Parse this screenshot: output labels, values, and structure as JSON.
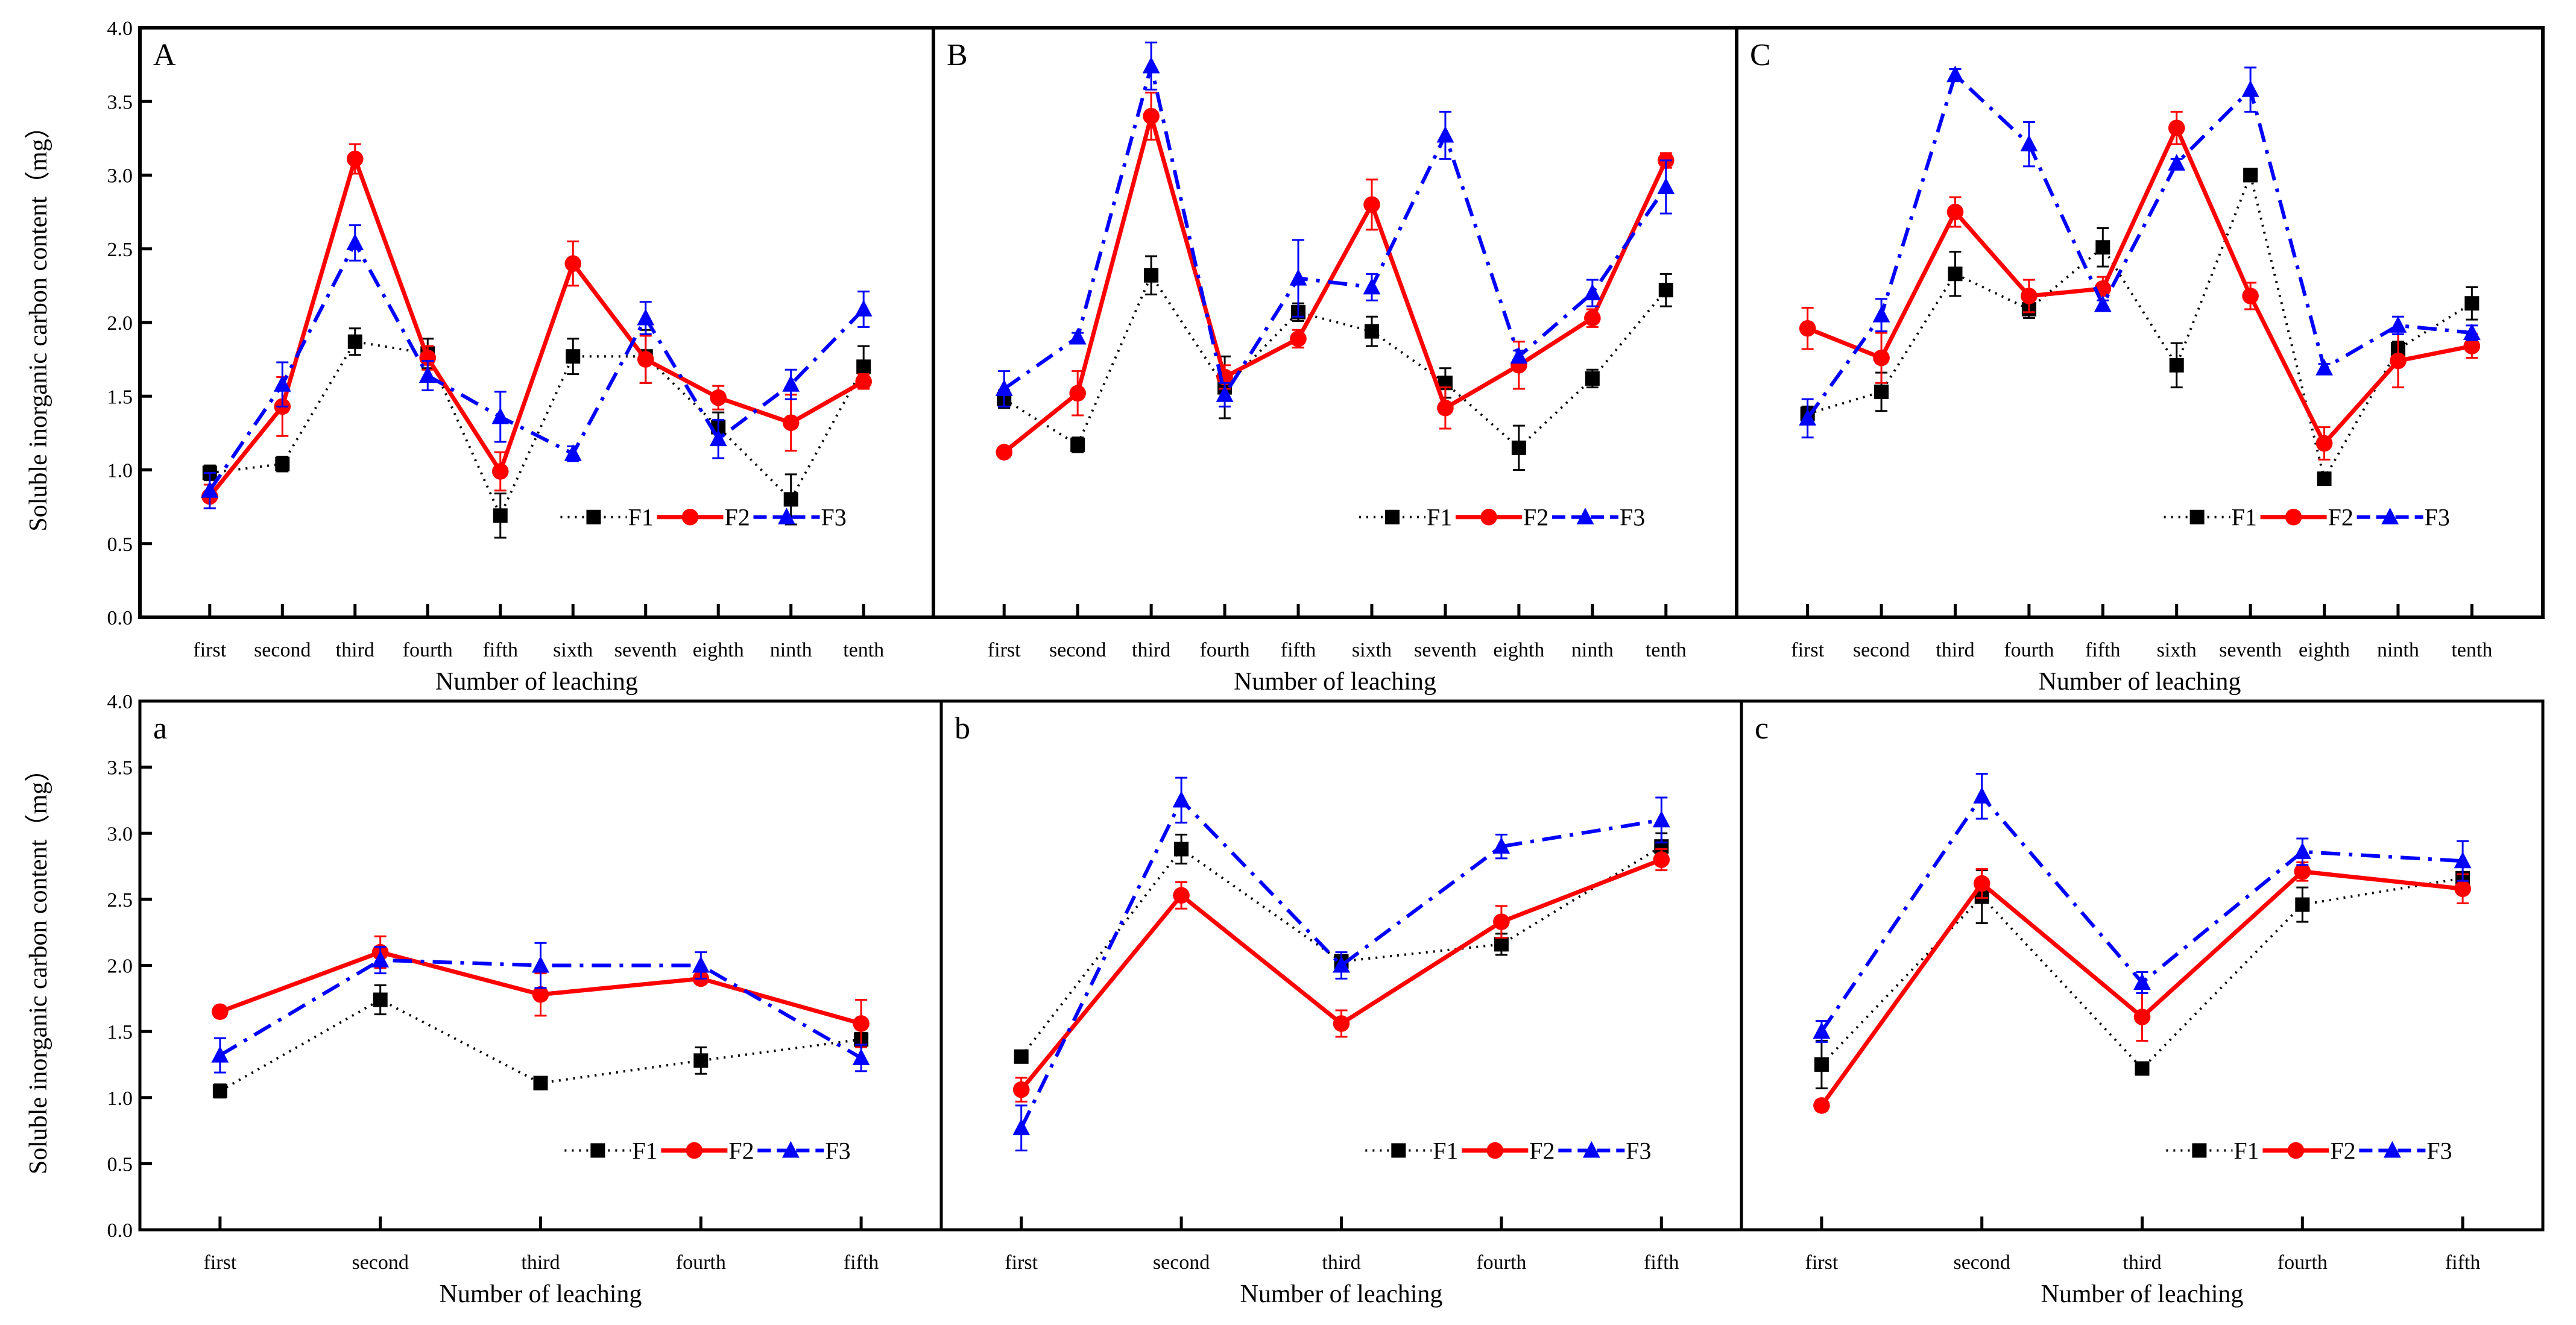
{
  "colors": {
    "F1": "#000000",
    "F2": "#ff0000",
    "F3": "#0000ff"
  },
  "ylabel": "Soluble inorganic carbon content（mg）",
  "xlabel": "Number of leaching",
  "yticks": [
    "0.0",
    "0.5",
    "1.0",
    "1.5",
    "2.0",
    "2.5",
    "3.0",
    "3.5",
    "4.0"
  ],
  "legend": [
    "F1",
    "F2",
    "F3"
  ],
  "chart_data": [
    {
      "type": "line",
      "panel": "A",
      "categories": [
        "first",
        "second",
        "third",
        "fourth",
        "fifth",
        "sixth",
        "seventh",
        "eighth",
        "ninth",
        "tenth"
      ],
      "ylim": [
        0,
        4
      ],
      "xlabel": "Number of leaching",
      "ylabel": "Soluble inorganic carbon content（mg）",
      "legend_placement": "bottom-right",
      "series": [
        {
          "name": "F1",
          "values": [
            0.98,
            1.04,
            1.87,
            1.79,
            0.69,
            1.77,
            1.77,
            1.29,
            0.8,
            1.7
          ],
          "errors": [
            0.05,
            0.05,
            0.09,
            0.1,
            0.15,
            0.12,
            0.18,
            0.1,
            0.17,
            0.14
          ]
        },
        {
          "name": "F2",
          "values": [
            0.82,
            1.43,
            3.11,
            1.76,
            0.99,
            2.4,
            1.75,
            1.49,
            1.32,
            1.6
          ],
          "errors": [
            0.08,
            0.2,
            0.1,
            0.08,
            0.13,
            0.15,
            0.16,
            0.08,
            0.19,
            0.05
          ]
        },
        {
          "name": "F3",
          "values": [
            0.86,
            1.58,
            2.54,
            1.64,
            1.36,
            1.11,
            2.03,
            1.21,
            1.58,
            2.09
          ],
          "errors": [
            0.12,
            0.15,
            0.12,
            0.1,
            0.17,
            0.05,
            0.11,
            0.13,
            0.1,
            0.12
          ]
        }
      ]
    },
    {
      "type": "line",
      "panel": "B",
      "categories": [
        "first",
        "second",
        "third",
        "fourth",
        "fifth",
        "sixth",
        "seventh",
        "eighth",
        "ninth",
        "tenth"
      ],
      "ylim": [
        0,
        4
      ],
      "xlabel": "Number of leaching",
      "legend_placement": "bottom-right",
      "series": [
        {
          "name": "F1",
          "values": [
            1.48,
            1.17,
            2.32,
            1.56,
            2.07,
            1.94,
            1.59,
            1.15,
            1.62,
            2.22
          ],
          "errors": [
            0.06,
            0.05,
            0.13,
            0.21,
            0.06,
            0.1,
            0.1,
            0.15,
            0.06,
            0.11
          ]
        },
        {
          "name": "F2",
          "values": [
            1.12,
            1.52,
            3.4,
            1.63,
            1.89,
            2.8,
            1.42,
            1.71,
            2.03,
            3.1
          ],
          "errors": [
            0.03,
            0.15,
            0.16,
            0.08,
            0.06,
            0.17,
            0.14,
            0.16,
            0.06,
            0.05
          ]
        },
        {
          "name": "F3",
          "values": [
            1.55,
            1.9,
            3.74,
            1.51,
            2.3,
            2.24,
            3.27,
            1.77,
            2.2,
            2.92
          ],
          "errors": [
            0.12,
            0.03,
            0.16,
            0.08,
            0.26,
            0.09,
            0.16,
            0.04,
            0.09,
            0.18
          ]
        }
      ]
    },
    {
      "type": "line",
      "panel": "C",
      "categories": [
        "first",
        "second",
        "third",
        "fourth",
        "fifth",
        "sixth",
        "seventh",
        "eighth",
        "ninth",
        "tenth"
      ],
      "ylim": [
        0,
        4
      ],
      "xlabel": "Number of leaching",
      "legend_placement": "bottom-right",
      "series": [
        {
          "name": "F1",
          "values": [
            1.38,
            1.53,
            2.33,
            2.09,
            2.51,
            1.71,
            3.0,
            0.94,
            1.82,
            2.13
          ],
          "errors": [
            0.05,
            0.13,
            0.15,
            0.06,
            0.13,
            0.15,
            0.03,
            0.03,
            0.05,
            0.11
          ]
        },
        {
          "name": "F2",
          "values": [
            1.96,
            1.76,
            2.75,
            2.18,
            2.23,
            3.32,
            2.18,
            1.18,
            1.74,
            1.84
          ],
          "errors": [
            0.14,
            0.17,
            0.1,
            0.11,
            0.08,
            0.11,
            0.09,
            0.11,
            0.18,
            0.08
          ]
        },
        {
          "name": "F3",
          "values": [
            1.35,
            2.05,
            3.68,
            3.21,
            2.12,
            3.08,
            3.58,
            1.69,
            1.98,
            1.93
          ],
          "errors": [
            0.13,
            0.11,
            0.04,
            0.15,
            0.03,
            0.03,
            0.15,
            0.03,
            0.06,
            0.05
          ]
        }
      ]
    },
    {
      "type": "line",
      "panel": "a",
      "categories": [
        "first",
        "second",
        "third",
        "fourth",
        "fifth"
      ],
      "ylim": [
        0,
        4
      ],
      "xlabel": "Number of leaching",
      "ylabel": "Soluble inorganic carbon content（mg）",
      "legend_placement": "bottom-right",
      "series": [
        {
          "name": "F1",
          "values": [
            1.05,
            1.74,
            1.11,
            1.28,
            1.44
          ],
          "errors": [
            0.05,
            0.11,
            0.04,
            0.1,
            0.05
          ]
        },
        {
          "name": "F2",
          "values": [
            1.65,
            2.1,
            1.78,
            1.9,
            1.56
          ],
          "errors": [
            0.04,
            0.12,
            0.16,
            0.03,
            0.18
          ]
        },
        {
          "name": "F3",
          "values": [
            1.32,
            2.04,
            2.0,
            2.0,
            1.3
          ],
          "errors": [
            0.13,
            0.1,
            0.17,
            0.1,
            0.1
          ]
        }
      ]
    },
    {
      "type": "line",
      "panel": "b",
      "categories": [
        "first",
        "second",
        "third",
        "fourth",
        "fifth"
      ],
      "ylim": [
        0,
        4
      ],
      "xlabel": "Number of leaching",
      "legend_placement": "bottom-right",
      "series": [
        {
          "name": "F1",
          "values": [
            1.31,
            2.88,
            2.03,
            2.16,
            2.9
          ],
          "errors": [
            0.04,
            0.11,
            0.05,
            0.08,
            0.1
          ]
        },
        {
          "name": "F2",
          "values": [
            1.06,
            2.53,
            1.56,
            2.33,
            2.8
          ],
          "errors": [
            0.09,
            0.1,
            0.1,
            0.12,
            0.08
          ]
        },
        {
          "name": "F3",
          "values": [
            0.77,
            3.25,
            2.0,
            2.9,
            3.1
          ],
          "errors": [
            0.17,
            0.17,
            0.1,
            0.09,
            0.17
          ]
        }
      ]
    },
    {
      "type": "line",
      "panel": "c",
      "categories": [
        "first",
        "second",
        "third",
        "fourth",
        "fifth"
      ],
      "ylim": [
        0,
        4
      ],
      "xlabel": "Number of leaching",
      "legend_placement": "bottom-right",
      "series": [
        {
          "name": "F1",
          "values": [
            1.25,
            2.52,
            1.22,
            2.46,
            2.66
          ],
          "errors": [
            0.18,
            0.2,
            0.04,
            0.13,
            0.1
          ]
        },
        {
          "name": "F2",
          "values": [
            0.94,
            2.62,
            1.61,
            2.71,
            2.58
          ],
          "errors": [
            0.04,
            0.11,
            0.18,
            0.07,
            0.11
          ]
        },
        {
          "name": "F3",
          "values": [
            1.5,
            3.28,
            1.87,
            2.86,
            2.79
          ],
          "errors": [
            0.08,
            0.17,
            0.08,
            0.1,
            0.15
          ]
        }
      ]
    }
  ]
}
